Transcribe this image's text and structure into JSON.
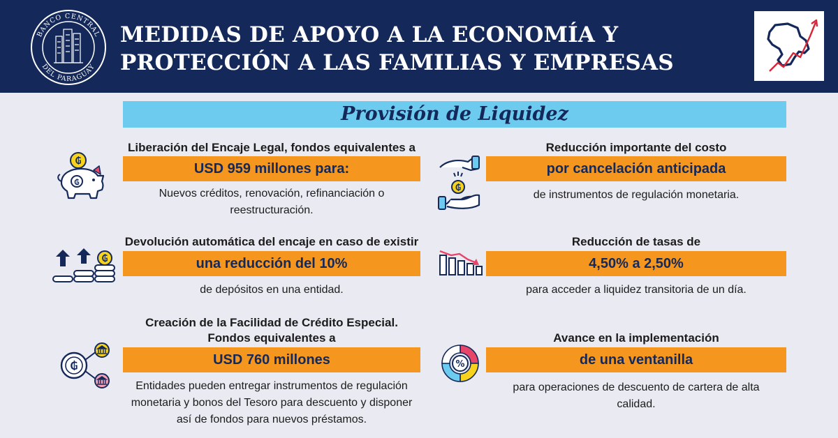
{
  "header": {
    "title_line1": "MEDIDAS DE APOYO A LA ECONOMÍA Y",
    "title_line2": "PROTECCIÓN A LAS FAMILIAS Y EMPRESAS",
    "seal_top_text": "BANCO CENTRAL",
    "seal_bottom_text": "DEL PARAGUAY",
    "logo_icon": "paraguay-map-arrow-icon"
  },
  "section_title": "Provisión de Liquidez",
  "colors": {
    "header_bg": "#14295a",
    "section_bar": "#6ccbef",
    "highlight_box": "#f5961e",
    "accent_pink": "#e8456b",
    "accent_yellow": "#f7d31e",
    "background": "#e9eaf2"
  },
  "measures": [
    {
      "heading": "Liberación del Encaje Legal, fondos equivalentes a",
      "highlight": "USD 959 millones para:",
      "description_line1": "Nuevos créditos, renovación, refinanciación o",
      "description_line2": "reestructuración.",
      "icon": "piggy-bank-icon"
    },
    {
      "heading": "Reducción importante del costo",
      "highlight": "por cancelación anticipada",
      "description_line1": "de instrumentos de regulación monetaria.",
      "icon": "hands-coin-icon"
    },
    {
      "heading": "Devolución automática del encaje en caso de existir",
      "highlight": "una reducción del 10%",
      "description_line1": "de depósitos en una entidad.",
      "icon": "coin-stacks-arrows-icon"
    },
    {
      "heading": "Reducción de tasas de",
      "highlight": "4,50% a 2,50%",
      "description_line1": "para acceder a liquidez transitoria de un día.",
      "icon": "declining-bars-icon"
    },
    {
      "heading_line1": "Creación de la Facilidad de Crédito Especial.",
      "heading_line2": "Fondos equivalentes a",
      "highlight": "USD 760 millones",
      "description_line1": "Entidades pueden entregar instrumentos de regulación",
      "description_line2": "monetaria y bonos del Tesoro para descuento y disponer",
      "description_line3": "así de fondos para nuevos préstamos.",
      "icon": "coin-bank-network-icon"
    },
    {
      "heading": "Avance en la implementación",
      "highlight": "de una ventanilla",
      "description_line1": "para operaciones de descuento de cartera de alta",
      "description_line2": "calidad.",
      "icon": "percent-donut-icon"
    }
  ]
}
